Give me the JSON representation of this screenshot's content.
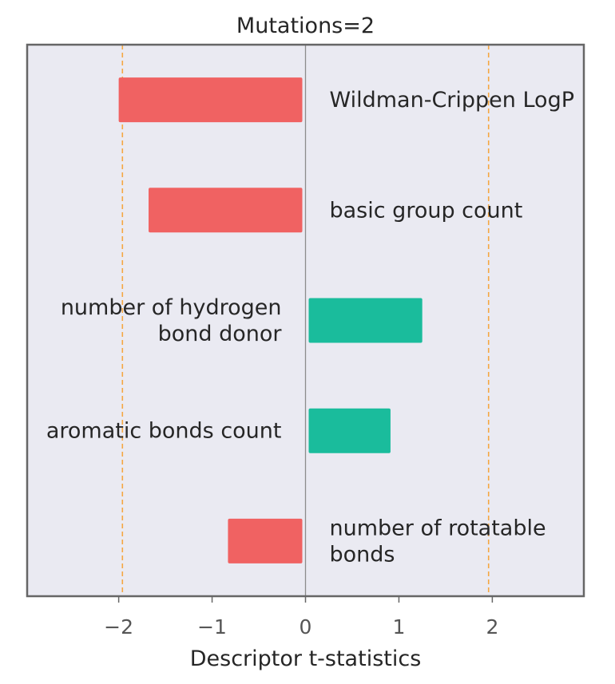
{
  "chart_data": {
    "type": "bar",
    "orientation": "horizontal",
    "title": "Mutations=2",
    "xlabel": "Descriptor t-statistics",
    "ylabel": "",
    "xlim": [
      -2.98,
      2.98
    ],
    "xticks": [
      -2,
      -1,
      0,
      1,
      2
    ],
    "xtick_labels": [
      "−2",
      "−1",
      "0",
      "1",
      "2"
    ],
    "reference_lines": [
      -1.96,
      1.96
    ],
    "grid": false,
    "categories": [
      [
        "Wildman-Crippen LogP"
      ],
      [
        "basic group count"
      ],
      [
        "number of hydrogen",
        "bond donor"
      ],
      [
        "aromatic bonds count"
      ],
      [
        "number of rotatable",
        "bonds"
      ]
    ],
    "values": [
      -2.0,
      -1.68,
      1.25,
      0.91,
      -0.83
    ]
  },
  "colors": {
    "negative": "#f06262",
    "positive": "#1abc9c",
    "plot_background": "#eaeaf2",
    "frame": "#666666",
    "reference_line": "#f5a742",
    "zero_line": "#8c8c8c"
  }
}
